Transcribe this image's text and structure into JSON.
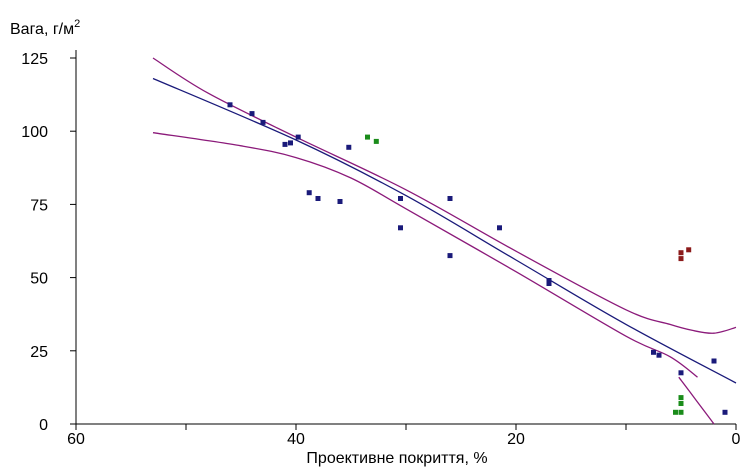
{
  "chart_data": {
    "type": "scatter",
    "title": "",
    "ylabel_main": "Вага, г/м",
    "ylabel_sup": "2",
    "xlabel": "Проективне покриття, %",
    "xlim": [
      60,
      0
    ],
    "ylim": [
      0,
      125
    ],
    "x_ticks": [
      "60",
      "40",
      "20",
      "0"
    ],
    "y_ticks": [
      "0",
      "25",
      "50",
      "75",
      "100",
      "125"
    ],
    "grid": false,
    "colors": {
      "navy": "#1a1a7a",
      "green": "#1a8c1a",
      "darkred": "#8b1a1a",
      "purple": "#8b1a7a"
    },
    "series": [
      {
        "color": "navy",
        "points": [
          [
            46,
            109
          ],
          [
            44,
            106
          ],
          [
            43,
            103
          ],
          [
            41,
            95.5
          ],
          [
            40.5,
            96
          ],
          [
            39.8,
            98
          ],
          [
            38.8,
            79
          ],
          [
            38,
            77
          ],
          [
            36,
            76
          ],
          [
            35.2,
            94.5
          ],
          [
            30.5,
            77
          ],
          [
            30.5,
            67
          ],
          [
            26,
            77
          ],
          [
            26,
            57.5
          ],
          [
            21.5,
            67
          ],
          [
            17,
            49
          ],
          [
            17,
            48
          ],
          [
            7.5,
            24.5
          ],
          [
            7,
            23.5
          ],
          [
            5,
            17.5
          ],
          [
            2,
            21.5
          ],
          [
            1,
            4
          ]
        ]
      },
      {
        "color": "green",
        "points": [
          [
            33.5,
            98
          ],
          [
            32.7,
            96.5
          ],
          [
            5.5,
            4
          ],
          [
            5,
            4
          ],
          [
            5,
            7
          ],
          [
            5,
            9
          ]
        ]
      },
      {
        "color": "darkred",
        "points": [
          [
            5,
            58.5
          ],
          [
            5,
            56.5
          ],
          [
            4.3,
            59.5
          ]
        ]
      }
    ],
    "regression_line": {
      "color": "navy",
      "points": [
        [
          53,
          118
        ],
        [
          40,
          97
        ],
        [
          30,
          78
        ],
        [
          20,
          56
        ],
        [
          10,
          34
        ],
        [
          0,
          14
        ]
      ]
    },
    "confidence_upper": {
      "color": "purple",
      "points": [
        [
          53,
          125
        ],
        [
          48,
          113
        ],
        [
          40,
          98
        ],
        [
          30,
          80
        ],
        [
          20,
          59
        ],
        [
          10,
          39
        ],
        [
          6,
          34
        ],
        [
          4,
          32
        ],
        [
          2,
          31
        ],
        [
          0,
          33
        ]
      ]
    },
    "confidence_lower": {
      "color": "purple",
      "points": [
        [
          53,
          99.5
        ],
        [
          45,
          95
        ],
        [
          40,
          91
        ],
        [
          35,
          84
        ],
        [
          30,
          73.5
        ],
        [
          20,
          52
        ],
        [
          10,
          30
        ],
        [
          6,
          23
        ],
        [
          3.5,
          16
        ]
      ]
    },
    "lower_tail": {
      "color": "purple",
      "points": [
        [
          5.2,
          16
        ],
        [
          4.2,
          11
        ],
        [
          3,
          5
        ],
        [
          2,
          0
        ]
      ]
    }
  }
}
